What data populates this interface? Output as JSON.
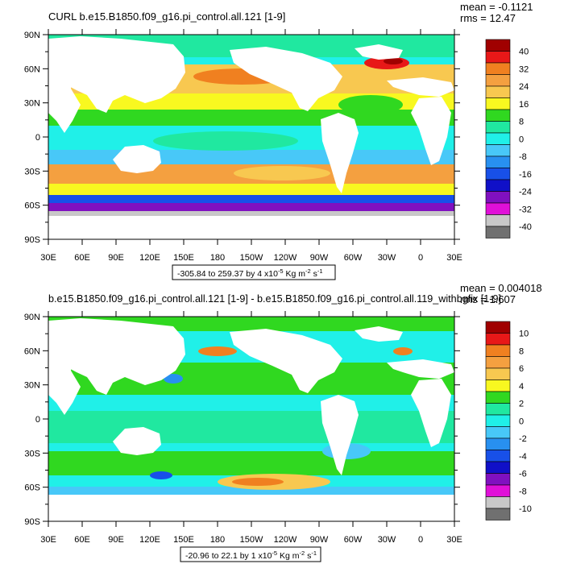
{
  "chart_data": [
    {
      "type": "heatmap",
      "title": "CURL b.e15.B1850.f09_g16.pi_control.all.121 [1-9]",
      "stats": {
        "mean": "mean = -0.1121",
        "rms": "rms = 12.47"
      },
      "range_label": {
        "prefix": "-305.84 to 259.37 by 4 x10",
        "exp": "-5",
        "unit1": " Kg m",
        "exp2": "-2",
        "unit2": " s",
        "exp3": "-1"
      },
      "x_ticks": [
        "30E",
        "60E",
        "90E",
        "120E",
        "150E",
        "180",
        "150W",
        "120W",
        "90W",
        "60W",
        "30W",
        "0",
        "30E"
      ],
      "y_ticks": [
        "90N",
        "60N",
        "30N",
        "0",
        "30S",
        "60S",
        "90S"
      ],
      "xlim": [
        30,
        390
      ],
      "ylim": [
        -90,
        90
      ],
      "colorbar": {
        "labels": [
          "40",
          "32",
          "24",
          "16",
          "8",
          "0",
          "-8",
          "-16",
          "-24",
          "-32",
          "-40"
        ],
        "colors": [
          "#a00000",
          "#e81818",
          "#f08020",
          "#f4a040",
          "#f8c850",
          "#f8f820",
          "#30d820",
          "#20e8a0",
          "#20f0e8",
          "#48c8f8",
          "#2890f0",
          "#1850e8",
          "#1010c8",
          "#8010c0",
          "#e010d8",
          "#c8c8c8",
          "#707070"
        ]
      }
    },
    {
      "type": "heatmap",
      "title": "b.e15.B1850.f09_g16.pi_control.all.121 [1-9] - b.e15.B1850.f09_g16.pi_control.all.119_withbgfix [1-9]",
      "stats": {
        "mean": "mean = 0.004018",
        "rms": "rms = 1.607"
      },
      "range_label": {
        "prefix": "-20.96 to 22.1 by 1 x10",
        "exp": "-5",
        "unit1": " Kg m",
        "exp2": "-2",
        "unit2": " s",
        "exp3": "-1"
      },
      "x_ticks": [
        "30E",
        "60E",
        "90E",
        "120E",
        "150E",
        "180",
        "150W",
        "120W",
        "90W",
        "60W",
        "30W",
        "0",
        "30E"
      ],
      "y_ticks": [
        "90N",
        "60N",
        "30N",
        "0",
        "30S",
        "60S",
        "90S"
      ],
      "xlim": [
        30,
        390
      ],
      "ylim": [
        -90,
        90
      ],
      "colorbar": {
        "labels": [
          "10",
          "8",
          "6",
          "4",
          "2",
          "0",
          "-2",
          "-4",
          "-6",
          "-8",
          "-10"
        ],
        "colors": [
          "#a00000",
          "#e81818",
          "#f08020",
          "#f4a040",
          "#f8c850",
          "#f8f820",
          "#30d820",
          "#20e8a0",
          "#20f0e8",
          "#48c8f8",
          "#2890f0",
          "#1850e8",
          "#1010c8",
          "#8010c0",
          "#e010d8",
          "#c8c8c8",
          "#707070"
        ]
      }
    }
  ]
}
